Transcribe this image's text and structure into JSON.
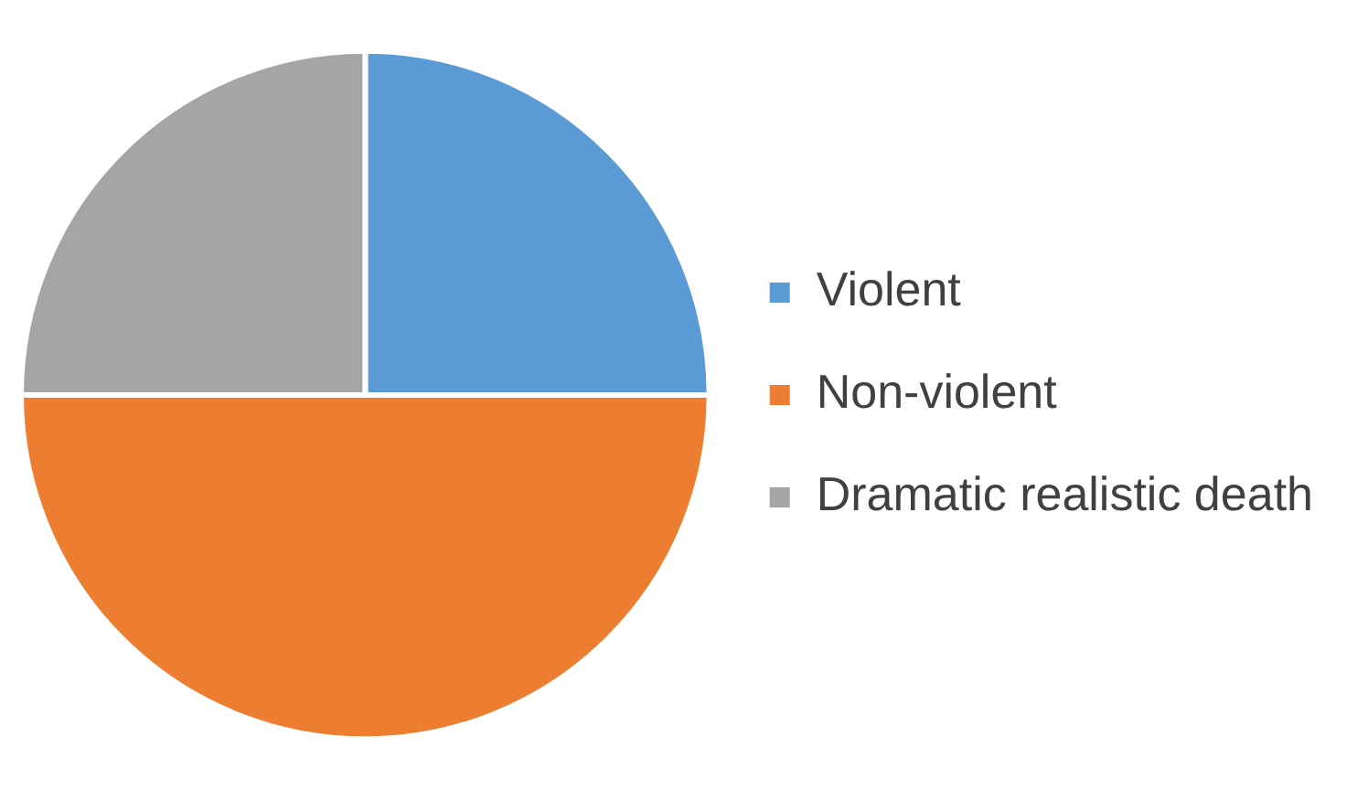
{
  "chart_data": {
    "type": "pie",
    "categories": [
      "Violent",
      "Non-violent",
      "Dramatic realistic death"
    ],
    "values": [
      25,
      50,
      25
    ],
    "colors": [
      "#5b9bd5",
      "#ed7d31",
      "#a5a5a5"
    ],
    "legend": "right"
  }
}
